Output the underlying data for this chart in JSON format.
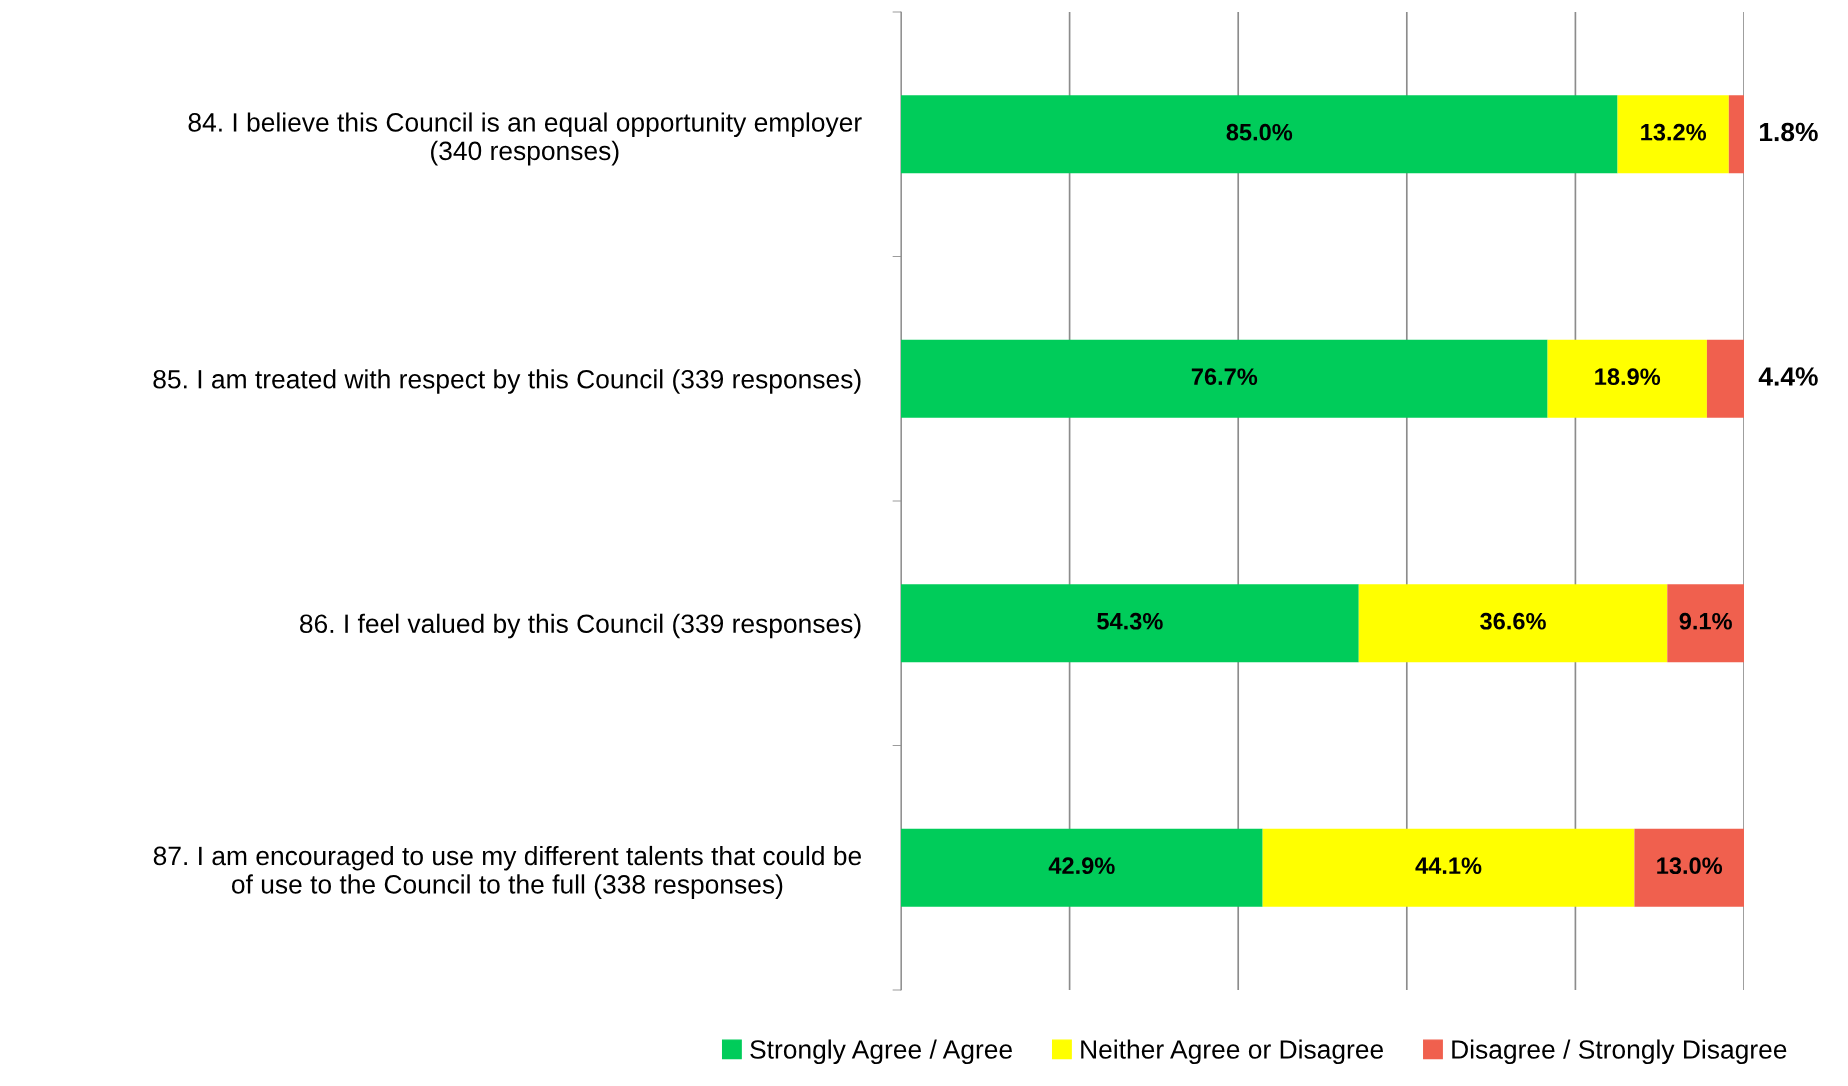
{
  "chart_data": {
    "type": "bar",
    "orientation": "horizontal",
    "stacked": true,
    "categories": [
      "84. I believe this Council is an equal opportunity employer\n(340 responses)",
      "85. I am treated with respect by this Council (339 responses)",
      "86. I feel valued by this Council (339 responses)",
      "87. I am encouraged to use my different talents that could be\nof use to the Council to the full (338 responses)"
    ],
    "series": [
      {
        "name": "Strongly Agree / Agree",
        "color": "#00cc5a",
        "values": [
          85.0,
          76.7,
          54.3,
          42.9
        ],
        "value_labels": [
          "85.0%",
          "76.7%",
          "54.3%",
          "42.9%"
        ]
      },
      {
        "name": "Neither Agree or Disagree",
        "color": "#ffff00",
        "values": [
          13.2,
          18.9,
          36.6,
          44.1
        ],
        "value_labels": [
          "13.2%",
          "18.9%",
          "36.6%",
          "44.1%"
        ]
      },
      {
        "name": "Disagree / Strongly Disagree",
        "color": "#f0604e",
        "values": [
          1.8,
          4.4,
          9.1,
          13.0
        ],
        "value_labels": [
          "1.8%",
          "4.4%",
          "9.1%",
          "13.0%"
        ]
      }
    ],
    "xlim": [
      0,
      100
    ],
    "xticks": [
      {
        "value": 0,
        "label": null
      },
      {
        "value": 20,
        "label": null
      },
      {
        "value": 40,
        "label": null
      },
      {
        "value": 60,
        "label": null
      },
      {
        "value": 80,
        "label": null
      },
      {
        "value": 100,
        "label": null
      }
    ],
    "grid": "x",
    "legend": "bottom",
    "tick_labels": "y"
  }
}
